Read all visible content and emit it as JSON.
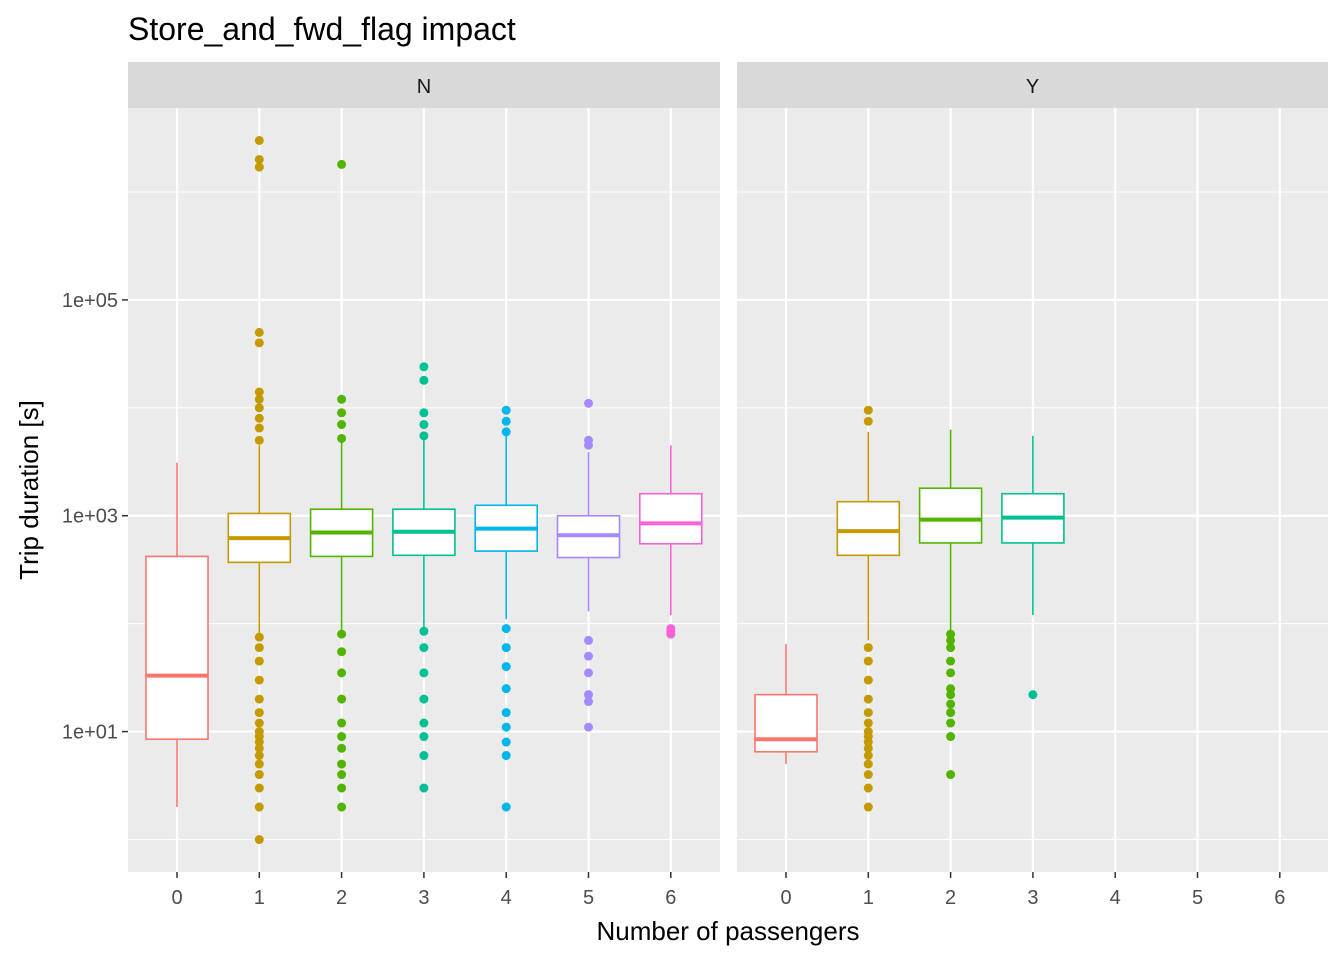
{
  "chart_data": {
    "type": "boxplot",
    "title": "Store_and_fwd_flag impact",
    "xlabel": "Number of passengers",
    "ylabel": "Trip duration [s]",
    "y_scale": "log10",
    "ylim": [
      0.5,
      6000000
    ],
    "y_ticks": [
      {
        "value": 10,
        "label": "1e+01"
      },
      {
        "value": 1000,
        "label": "1e+03"
      },
      {
        "value": 100000,
        "label": "1e+05"
      }
    ],
    "categories": [
      "0",
      "1",
      "2",
      "3",
      "4",
      "5",
      "6"
    ],
    "grid": true,
    "legend": "none",
    "colors": {
      "0": "#F8766D",
      "1": "#C49A00",
      "2": "#53B400",
      "3": "#00C094",
      "4": "#00B6EB",
      "5": "#A58AFF",
      "6": "#FB61D7"
    },
    "panels": [
      {
        "label": "N",
        "boxes": [
          {
            "x": "0",
            "lower_whisker": 2,
            "q1": 8.5,
            "median": 33,
            "q3": 420,
            "upper_whisker": 3100,
            "outliers": []
          },
          {
            "x": "1",
            "lower_whisker": 80,
            "q1": 370,
            "median": 620,
            "q3": 1050,
            "upper_whisker": 4500,
            "outliers": [
              1,
              2,
              3,
              4,
              5,
              6,
              7,
              8,
              9,
              10,
              12,
              15,
              20,
              30,
              45,
              60,
              75,
              5000,
              6500,
              8000,
              10000,
              12000,
              14000,
              40000,
              50000,
              1700000,
              2000000,
              3000000
            ]
          },
          {
            "x": "2",
            "lower_whisker": 85,
            "q1": 420,
            "median": 700,
            "q3": 1150,
            "upper_whisker": 4800,
            "outliers": [
              2,
              3,
              4,
              5,
              7,
              9,
              12,
              20,
              35,
              55,
              80,
              5200,
              7000,
              9000,
              12000,
              1800000
            ]
          },
          {
            "x": "3",
            "lower_whisker": 90,
            "q1": 430,
            "median": 710,
            "q3": 1150,
            "upper_whisker": 5000,
            "outliers": [
              3,
              6,
              9,
              12,
              20,
              35,
              60,
              85,
              5500,
              7000,
              9000,
              18000,
              24000
            ]
          },
          {
            "x": "4",
            "lower_whisker": 110,
            "q1": 470,
            "median": 760,
            "q3": 1250,
            "upper_whisker": 5500,
            "outliers": [
              2,
              6,
              8,
              11,
              15,
              25,
              40,
              60,
              90,
              6000,
              7500,
              9500
            ]
          },
          {
            "x": "5",
            "lower_whisker": 130,
            "q1": 410,
            "median": 660,
            "q3": 1000,
            "upper_whisker": 3900,
            "outliers": [
              11,
              19,
              22,
              35,
              50,
              70,
              4500,
              5000,
              11000
            ]
          },
          {
            "x": "6",
            "lower_whisker": 120,
            "q1": 550,
            "median": 850,
            "q3": 1600,
            "upper_whisker": 4500,
            "outliers": [
              80,
              85,
              90
            ]
          }
        ]
      },
      {
        "label": "Y",
        "boxes": [
          {
            "x": "0",
            "lower_whisker": 5,
            "q1": 6.5,
            "median": 8.5,
            "q3": 22,
            "upper_whisker": 65,
            "outliers": []
          },
          {
            "x": "1",
            "lower_whisker": 70,
            "q1": 430,
            "median": 720,
            "q3": 1350,
            "upper_whisker": 6000,
            "outliers": [
              2,
              3,
              4,
              5,
              6,
              7,
              8,
              9,
              10,
              12,
              15,
              20,
              30,
              45,
              60,
              7500,
              9500
            ]
          },
          {
            "x": "2",
            "lower_whisker": 80,
            "q1": 560,
            "median": 920,
            "q3": 1800,
            "upper_whisker": 6300,
            "outliers": [
              4,
              9,
              12,
              15,
              18,
              22,
              25,
              35,
              45,
              60,
              70,
              80
            ]
          },
          {
            "x": "3",
            "lower_whisker": 120,
            "q1": 560,
            "median": 960,
            "q3": 1600,
            "upper_whisker": 5500,
            "outliers": [
              22
            ]
          }
        ]
      }
    ]
  }
}
